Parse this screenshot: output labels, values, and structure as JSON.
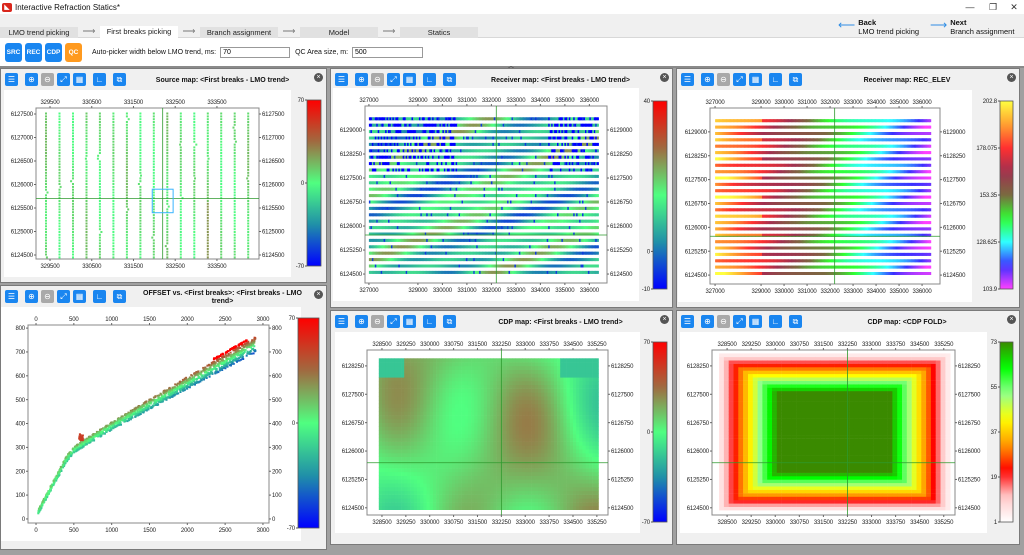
{
  "window": {
    "title": "Interactive Refraction Statics*",
    "icon": "app-logo-icon",
    "controls": [
      "minimize-icon",
      "restore-icon",
      "close-icon"
    ]
  },
  "tabs": [
    {
      "label": "LMO trend picking",
      "active": false
    },
    {
      "label": "First breaks picking",
      "active": true
    },
    {
      "label": "Branch assignment",
      "active": false
    },
    {
      "label": "Model",
      "active": false
    },
    {
      "label": "Statics",
      "active": false
    }
  ],
  "nav": {
    "back": {
      "title": "Back",
      "subtitle": "LMO trend picking",
      "icon": "arrow-left-icon"
    },
    "next": {
      "title": "Next",
      "subtitle": "Branch assignment",
      "icon": "arrow-right-icon"
    }
  },
  "toolbar": {
    "modes": [
      "SRC",
      "REC",
      "CDP",
      "QC"
    ],
    "autopicker_label": "Auto-picker width below LMO trend, ms:",
    "autopicker_value": "70",
    "qc_area_label": "QC Area size, m:",
    "qc_area_value": "500"
  },
  "panel_tools": [
    "settings-icon",
    "zoom-in-icon",
    "zoom-out-icon",
    "fit-extent-icon",
    "one-to-one-icon",
    "axes-icon",
    "popout-icon"
  ],
  "colormaps": {
    "bgr": [
      "#0000ff",
      "#2090a8",
      "#50ff80",
      "#a06a40",
      "#ff0000"
    ],
    "elev": [
      "#ff40ff",
      "#3a30ff",
      "#30ffff",
      "#30ff30",
      "#7a6a40",
      "#a03050",
      "#ff3030",
      "#ffa030",
      "#ffff40"
    ],
    "fold": [
      "#ffffff",
      "#ffc8c8",
      "#ff0000",
      "#ff9900",
      "#ffff00",
      "#90ff90",
      "#00ff00",
      "#3a8a00"
    ]
  },
  "panels": [
    {
      "id": "source",
      "title": "Source map:  <First breaks - LMO trend>",
      "x_ticks": [
        329500,
        330500,
        331500,
        332500,
        333500
      ],
      "y_ticks": [
        6124500,
        6125000,
        6125500,
        6126000,
        6126500,
        6127000,
        6127500
      ],
      "xlim": [
        329164,
        334508
      ],
      "ylim": [
        6124415,
        6127628
      ],
      "crosshair": [
        332200,
        6125700
      ],
      "qc_box": [
        331950,
        6125400,
        332450,
        6125900
      ],
      "colorbar": {
        "map": "bgr",
        "range": [
          -70,
          70
        ],
        "ticks": [
          -70,
          0,
          70
        ]
      }
    },
    {
      "id": "offset",
      "title": "OFFSET vs. <First breaks>:  <First breaks - LMO trend>",
      "x_ticks": [
        0,
        500,
        1000,
        1500,
        2000,
        2500,
        3000
      ],
      "y_ticks": [
        0,
        100,
        200,
        300,
        400,
        500,
        600,
        700,
        800
      ],
      "xlim": [
        -106,
        3080
      ],
      "ylim": [
        -17,
        813
      ],
      "colorbar": {
        "map": "bgr",
        "range": [
          -70,
          70
        ],
        "ticks": [
          -70,
          0,
          70
        ]
      }
    },
    {
      "id": "receiver",
      "title": "Receiver map:  <First breaks - LMO trend>",
      "x_ticks": [
        327000,
        329000,
        330000,
        331000,
        332000,
        333000,
        334000,
        335000,
        336000
      ],
      "y_ticks": [
        6124500,
        6125250,
        6126000,
        6126750,
        6127500,
        6128250,
        6129000
      ],
      "xlim": [
        326840,
        336720
      ],
      "ylim": [
        6124220,
        6129750
      ],
      "crosshair": [
        332200,
        6125720
      ],
      "colorbar": {
        "map": "bgr",
        "range": [
          -10,
          40
        ],
        "ticks": [
          -10,
          0,
          40
        ]
      }
    },
    {
      "id": "elev",
      "title": "Receiver map:  REC_ELEV",
      "x_ticks": [
        327000,
        329000,
        330000,
        331000,
        332000,
        333000,
        334000,
        335000,
        336000
      ],
      "y_ticks": [
        6124500,
        6125250,
        6126000,
        6126750,
        6127500,
        6128250,
        6129000
      ],
      "xlim": [
        326780,
        336780
      ],
      "ylim": [
        6124220,
        6129750
      ],
      "crosshair": [
        332200,
        6125720
      ],
      "colorbar": {
        "map": "elev",
        "range": [
          103.9,
          202.8
        ],
        "ticks": [
          103.9,
          128.625,
          153.35,
          178.075,
          202.8
        ]
      }
    },
    {
      "id": "cdp",
      "title": "CDP map:  <First breaks - LMO trend>",
      "x_ticks": [
        328500,
        329250,
        330000,
        330750,
        331500,
        332250,
        333000,
        333750,
        334500,
        335250
      ],
      "y_ticks": [
        6124500,
        6125250,
        6126000,
        6126750,
        6127500,
        6128250
      ],
      "xlim": [
        328030,
        335600
      ],
      "ylim": [
        6124310,
        6128670
      ],
      "crosshair": [
        332250,
        6125690
      ],
      "colorbar": {
        "map": "bgr",
        "range": [
          -70,
          70
        ],
        "ticks": [
          -70,
          0,
          70
        ]
      }
    },
    {
      "id": "fold",
      "title": "CDP map:  <CDP FOLD>",
      "x_ticks": [
        328500,
        329250,
        330000,
        330750,
        331500,
        332250,
        333000,
        333750,
        334500,
        335250
      ],
      "y_ticks": [
        6124500,
        6125250,
        6126000,
        6126750,
        6127500,
        6128250
      ],
      "xlim": [
        328030,
        335600
      ],
      "ylim": [
        6124310,
        6128670
      ],
      "crosshair": [
        332250,
        6125690
      ],
      "colorbar": {
        "map": "fold",
        "range": [
          1,
          73
        ],
        "ticks": [
          1,
          19,
          37,
          55,
          73
        ]
      }
    }
  ]
}
